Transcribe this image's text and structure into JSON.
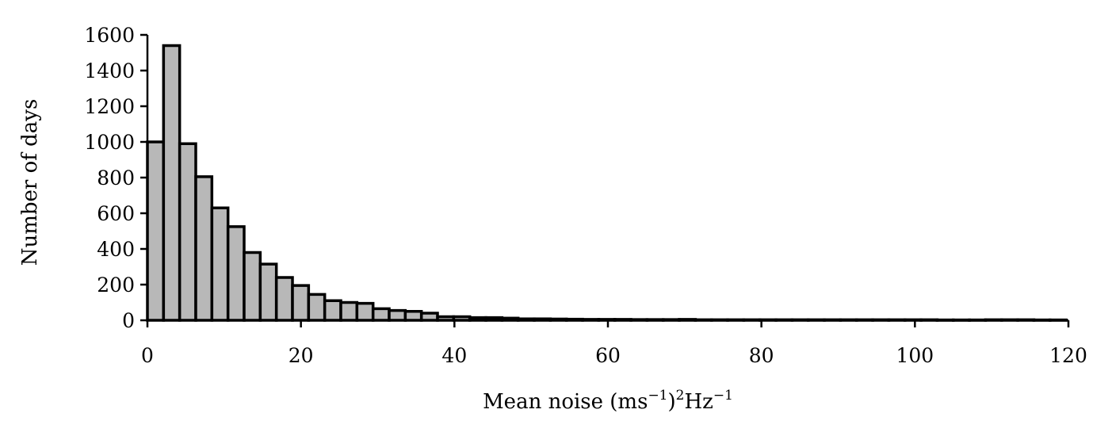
{
  "chart_data": {
    "type": "bar",
    "title": "",
    "xlabel": {
      "prefix": "Mean noise (ms",
      "sup1": "−1",
      "mid": ")",
      "sup2": "2",
      "mid2": "Hz",
      "sup3": "−1"
    },
    "ylabel": "Number of days",
    "xlim": [
      0,
      120
    ],
    "ylim": [
      0,
      1600
    ],
    "xticks": [
      0,
      20,
      40,
      60,
      80,
      100,
      120
    ],
    "yticks": [
      0,
      200,
      400,
      600,
      800,
      1000,
      1200,
      1400,
      1600
    ],
    "bin_width": 2.1,
    "bin_start": 0,
    "values": [
      1000,
      1540,
      990,
      805,
      630,
      525,
      380,
      315,
      240,
      195,
      145,
      110,
      100,
      95,
      65,
      55,
      50,
      40,
      20,
      20,
      15,
      15,
      12,
      8,
      8,
      7,
      6,
      5,
      5,
      5,
      4,
      4,
      4,
      5,
      3,
      3,
      3,
      3,
      3,
      3,
      3,
      3,
      3,
      3,
      3,
      3,
      3,
      3,
      3,
      2,
      2,
      2,
      3,
      3,
      3,
      2,
      2
    ],
    "bar_fill": "#b8b8b8",
    "bar_stroke": "#000000",
    "grid": false
  }
}
